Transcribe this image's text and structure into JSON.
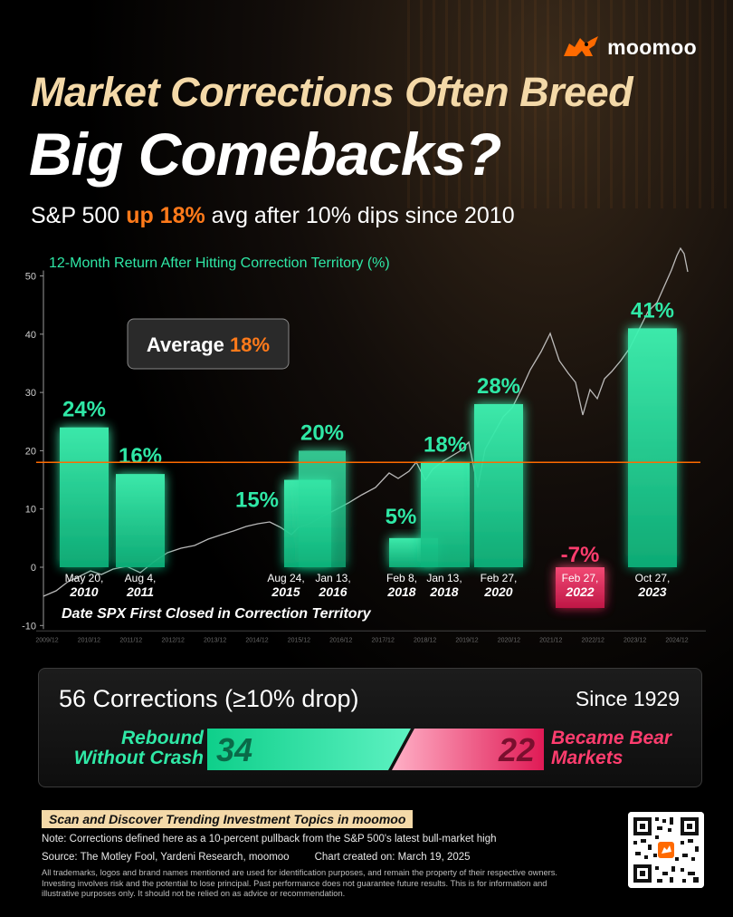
{
  "brand": {
    "name": "moomoo",
    "accent": "#ff6a00"
  },
  "title": {
    "line1": "Market Corrections Often Breed",
    "line2": "Big Comebacks?"
  },
  "subtitle": {
    "pre": "S&P 500 ",
    "highlight": "up 18%",
    "post": " avg after 10% dips since 2010"
  },
  "chart_data": {
    "type": "bar",
    "title": "12-Month Return After Hitting Correction Territory (%)",
    "xlabel": "Date SPX First Closed in Correction Territory",
    "ylim": [
      -10,
      50
    ],
    "yticks": [
      -10,
      0,
      10,
      20,
      30,
      40,
      50
    ],
    "average_value": 18,
    "average_label": {
      "pre": "Average ",
      "value": "18%"
    },
    "bars": [
      {
        "date": "May 20,",
        "year": "2010",
        "value": 24,
        "label": "24%"
      },
      {
        "date": "Aug 4,",
        "year": "2011",
        "value": 16,
        "label": "16%"
      },
      {
        "date": "Aug 24,",
        "year": "2015",
        "value": 15,
        "label": "15%"
      },
      {
        "date": "Jan 13,",
        "year": "2016",
        "value": 20,
        "label": "20%"
      },
      {
        "date": "Feb 8,",
        "year": "2018",
        "value": 5,
        "label": "5%"
      },
      {
        "date": "Jan 13,",
        "year": "2018",
        "value": 18,
        "label": "18%"
      },
      {
        "date": "Feb 27,",
        "year": "2020",
        "value": 28,
        "label": "28%"
      },
      {
        "date": "Feb 27,",
        "year": "2022",
        "value": -7,
        "label": "-7%"
      },
      {
        "date": "Oct 27,",
        "year": "2023",
        "value": 41,
        "label": "41%"
      }
    ],
    "background_series": {
      "x_ticks": [
        "2009/12",
        "2010/12",
        "2011/12",
        "2012/12",
        "2013/12",
        "2014/12",
        "2015/12",
        "2016/12",
        "2017/12",
        "2018/12",
        "2019/12",
        "2020/12",
        "2021/12",
        "2022/12",
        "2023/12",
        "2024/12"
      ]
    },
    "colors": {
      "positive": "#2fe8a6",
      "negative": "#ff3d6e",
      "average_line": "#ff6a00"
    }
  },
  "corrections": {
    "title": "56 Corrections (≥10% drop)",
    "since": "Since 1929",
    "rebound": {
      "label_line1": "Rebound",
      "label_line2": "Without Crash",
      "count": "34"
    },
    "bear": {
      "label_line1": "Became Bear",
      "label_line2": "Markets",
      "count": "22"
    }
  },
  "footer": {
    "scan": "Scan and Discover Trending Investment Topics in moomoo",
    "note": "Note: Corrections defined here as a 10-percent pullback from the S&P 500's latest bull-market high",
    "source": "Source: The Motley Fool, Yardeni Research, moomoo",
    "created": "Chart created on: March 19, 2025",
    "disclaimer": "All trademarks, logos and brand names mentioned are used for identification purposes, and remain the property of their respective owners. Investing involves risk and the potential to lose principal. Past performance does not guarantee future results. This is for information and illustrative purposes only. It should not be relied on as advice or recommendation."
  }
}
